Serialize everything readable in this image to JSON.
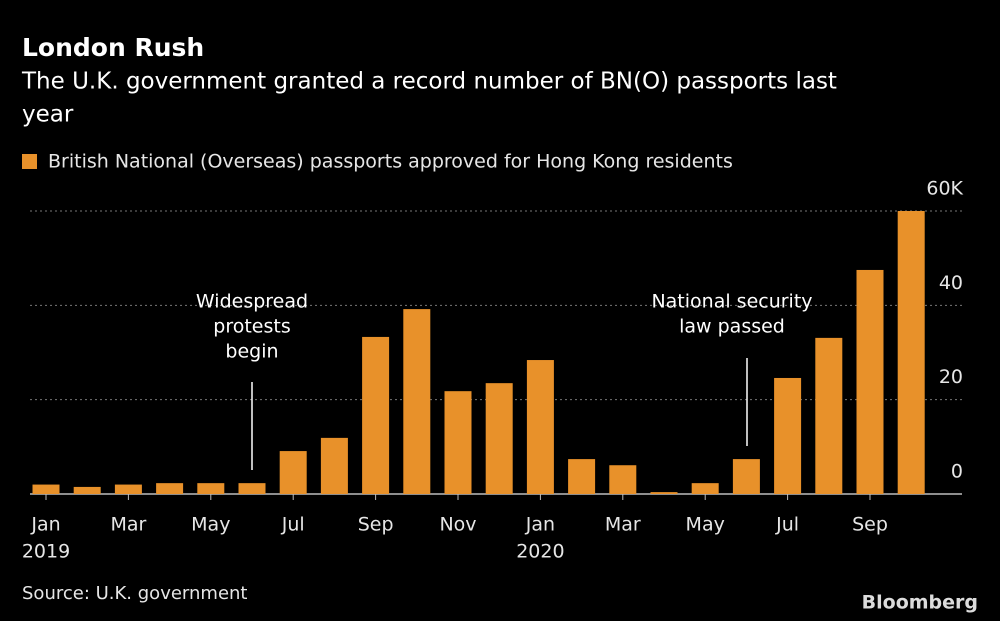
{
  "chart_data": {
    "type": "bar",
    "title": "London Rush",
    "subtitle": [
      "The U.K. government granted a record number of BN(O) passports last",
      "year"
    ],
    "series": [
      {
        "name": "British National (Overseas) passports approved for Hong Kong residents",
        "color": "#e8912a",
        "values": [
          2.0,
          1.5,
          2.0,
          2.3,
          2.3,
          2.3,
          9.1,
          11.9,
          33.3,
          39.2,
          21.8,
          23.5,
          28.4,
          7.4,
          6.1,
          0.4,
          2.3,
          7.4,
          24.6,
          33.1,
          47.5,
          60
        ]
      }
    ],
    "categories": [
      "Jan",
      null,
      "Mar",
      null,
      "May",
      null,
      "Jul",
      null,
      "Sep",
      null,
      "Nov",
      null,
      "Jan",
      null,
      "Mar",
      null,
      "May",
      null,
      "Jul",
      null,
      "Sep",
      null
    ],
    "category_years": [
      "2019",
      null,
      null,
      null,
      null,
      null,
      null,
      null,
      null,
      null,
      null,
      null,
      "2020",
      null,
      null,
      null,
      null,
      null,
      null,
      null,
      null,
      null
    ],
    "ylim": [
      0,
      60
    ],
    "yticks": [
      0,
      20,
      40,
      {
        "value": 60,
        "label": "60K"
      }
    ],
    "grid": true,
    "annotations": [
      {
        "lines": [
          "Widespread",
          "protests",
          "begin"
        ]
      },
      {
        "lines": [
          "National security",
          "law passed"
        ]
      }
    ],
    "source": "Source: U.K. government",
    "brand": "Bloomberg"
  }
}
